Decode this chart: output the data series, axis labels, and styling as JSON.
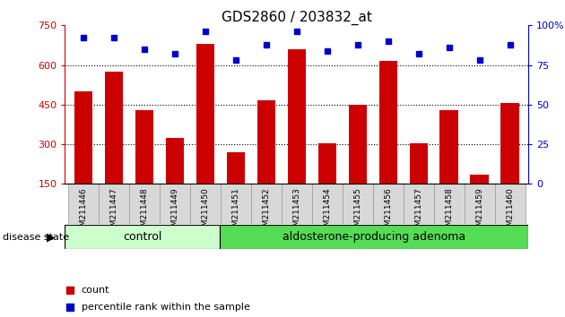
{
  "title": "GDS2860 / 203832_at",
  "samples": [
    "GSM211446",
    "GSM211447",
    "GSM211448",
    "GSM211449",
    "GSM211450",
    "GSM211451",
    "GSM211452",
    "GSM211453",
    "GSM211454",
    "GSM211455",
    "GSM211456",
    "GSM211457",
    "GSM211458",
    "GSM211459",
    "GSM211460"
  ],
  "counts": [
    500,
    575,
    430,
    325,
    680,
    270,
    465,
    660,
    305,
    450,
    615,
    305,
    430,
    185,
    455
  ],
  "percentiles": [
    92,
    92,
    85,
    82,
    96,
    78,
    88,
    96,
    84,
    88,
    90,
    82,
    86,
    78,
    88
  ],
  "ylim_left": [
    150,
    750
  ],
  "ylim_right": [
    0,
    100
  ],
  "yticks_left": [
    150,
    300,
    450,
    600,
    750
  ],
  "yticks_right": [
    0,
    25,
    50,
    75,
    100
  ],
  "bar_color": "#cc0000",
  "dot_color": "#0000cc",
  "control_color": "#ccffcc",
  "adenoma_color": "#55dd55",
  "n_control": 5,
  "n_adenoma": 10,
  "legend_count_label": "count",
  "legend_percentile_label": "percentile rank within the sample",
  "disease_state_label": "disease state",
  "control_label": "control",
  "adenoma_label": "aldosterone-producing adenoma"
}
